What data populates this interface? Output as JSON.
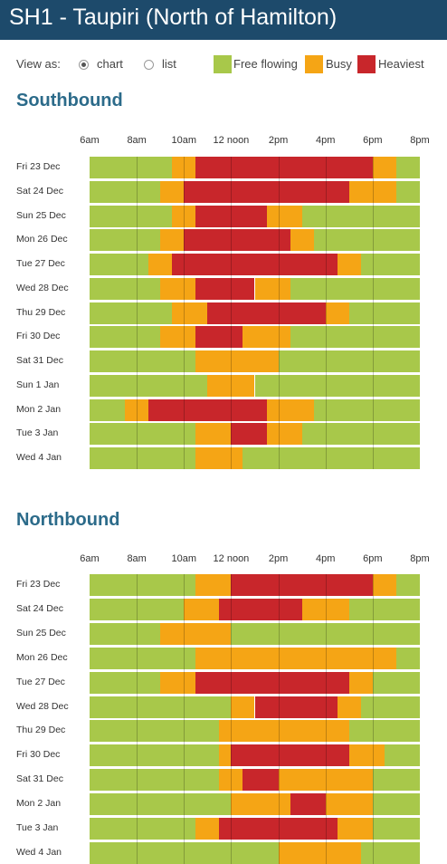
{
  "header": {
    "title": "SH1 - Taupiri (North of Hamilton)"
  },
  "view": {
    "label": "View as:",
    "options": [
      "chart",
      "list"
    ],
    "selected": "chart"
  },
  "legend": [
    {
      "label": "Free flowing",
      "color": "#a8c84a"
    },
    {
      "label": "Busy",
      "color": "#f5a515"
    },
    {
      "label": "Heaviest",
      "color": "#c8262b"
    }
  ],
  "axis_ticks": [
    "6am",
    "8am",
    "10am",
    "12 noon",
    "2pm",
    "4pm",
    "6pm",
    "8pm"
  ],
  "chart_data": [
    {
      "type": "heatmap",
      "title": "Southbound",
      "x_ticks": [
        "6am",
        "8am",
        "10am",
        "12 noon",
        "2pm",
        "4pm",
        "6pm",
        "8pm"
      ],
      "xlim": [
        6,
        20
      ],
      "levels": [
        "Free flowing",
        "Busy",
        "Heaviest"
      ],
      "rows": [
        {
          "day": "Fri 23 Dec",
          "segments": [
            [
              6,
              9.5,
              "Free flowing"
            ],
            [
              9.5,
              10.5,
              "Busy"
            ],
            [
              10.5,
              18,
              "Heaviest"
            ],
            [
              18,
              19,
              "Busy"
            ],
            [
              19,
              20,
              "Free flowing"
            ]
          ]
        },
        {
          "day": "Sat 24 Dec",
          "segments": [
            [
              6,
              9,
              "Free flowing"
            ],
            [
              9,
              10,
              "Busy"
            ],
            [
              10,
              17,
              "Heaviest"
            ],
            [
              17,
              19,
              "Busy"
            ],
            [
              19,
              20,
              "Free flowing"
            ]
          ]
        },
        {
          "day": "Sun 25 Dec",
          "segments": [
            [
              6,
              9.5,
              "Free flowing"
            ],
            [
              9.5,
              10.5,
              "Busy"
            ],
            [
              10.5,
              13.5,
              "Heaviest"
            ],
            [
              13.5,
              15,
              "Busy"
            ],
            [
              15,
              20,
              "Free flowing"
            ]
          ]
        },
        {
          "day": "Mon 26 Dec",
          "segments": [
            [
              6,
              9,
              "Free flowing"
            ],
            [
              9,
              10,
              "Busy"
            ],
            [
              10,
              14.5,
              "Heaviest"
            ],
            [
              14.5,
              15.5,
              "Busy"
            ],
            [
              15.5,
              20,
              "Free flowing"
            ]
          ]
        },
        {
          "day": "Tue 27 Dec",
          "segments": [
            [
              6,
              8.5,
              "Free flowing"
            ],
            [
              8.5,
              9.5,
              "Busy"
            ],
            [
              9.5,
              16.5,
              "Heaviest"
            ],
            [
              16.5,
              17.5,
              "Busy"
            ],
            [
              17.5,
              20,
              "Free flowing"
            ]
          ]
        },
        {
          "day": "Wed 28 Dec",
          "segments": [
            [
              6,
              9,
              "Free flowing"
            ],
            [
              9,
              10.5,
              "Busy"
            ],
            [
              10.5,
              13,
              "Heaviest"
            ],
            [
              13,
              14.5,
              "Busy"
            ],
            [
              14.5,
              20,
              "Free flowing"
            ]
          ]
        },
        {
          "day": "Thu 29 Dec",
          "segments": [
            [
              6,
              9.5,
              "Free flowing"
            ],
            [
              9.5,
              11,
              "Busy"
            ],
            [
              11,
              16,
              "Heaviest"
            ],
            [
              16,
              17,
              "Busy"
            ],
            [
              17,
              20,
              "Free flowing"
            ]
          ]
        },
        {
          "day": "Fri 30 Dec",
          "segments": [
            [
              6,
              9,
              "Free flowing"
            ],
            [
              9,
              10.5,
              "Busy"
            ],
            [
              10.5,
              12.5,
              "Heaviest"
            ],
            [
              12.5,
              14.5,
              "Busy"
            ],
            [
              14.5,
              20,
              "Free flowing"
            ]
          ]
        },
        {
          "day": "Sat 31 Dec",
          "segments": [
            [
              6,
              10.5,
              "Free flowing"
            ],
            [
              10.5,
              14,
              "Busy"
            ],
            [
              14,
              20,
              "Free flowing"
            ]
          ]
        },
        {
          "day": "Sun 1 Jan",
          "segments": [
            [
              6,
              11,
              "Free flowing"
            ],
            [
              11,
              13,
              "Busy"
            ],
            [
              13,
              20,
              "Free flowing"
            ]
          ]
        },
        {
          "day": "Mon 2 Jan",
          "segments": [
            [
              6,
              7.5,
              "Free flowing"
            ],
            [
              7.5,
              8.5,
              "Busy"
            ],
            [
              8.5,
              13.5,
              "Heaviest"
            ],
            [
              13.5,
              15.5,
              "Busy"
            ],
            [
              15.5,
              20,
              "Free flowing"
            ]
          ]
        },
        {
          "day": "Tue 3 Jan",
          "segments": [
            [
              6,
              10.5,
              "Free flowing"
            ],
            [
              10.5,
              12,
              "Busy"
            ],
            [
              12,
              13.5,
              "Heaviest"
            ],
            [
              13.5,
              15,
              "Busy"
            ],
            [
              15,
              20,
              "Free flowing"
            ]
          ]
        },
        {
          "day": "Wed 4 Jan",
          "segments": [
            [
              6,
              10.5,
              "Free flowing"
            ],
            [
              10.5,
              12.5,
              "Busy"
            ],
            [
              12.5,
              20,
              "Free flowing"
            ]
          ]
        }
      ]
    },
    {
      "type": "heatmap",
      "title": "Northbound",
      "x_ticks": [
        "6am",
        "8am",
        "10am",
        "12 noon",
        "2pm",
        "4pm",
        "6pm",
        "8pm"
      ],
      "xlim": [
        6,
        20
      ],
      "levels": [
        "Free flowing",
        "Busy",
        "Heaviest"
      ],
      "rows": [
        {
          "day": "Fri 23 Dec",
          "segments": [
            [
              6,
              10.5,
              "Free flowing"
            ],
            [
              10.5,
              12,
              "Busy"
            ],
            [
              12,
              18,
              "Heaviest"
            ],
            [
              18,
              19,
              "Busy"
            ],
            [
              19,
              20,
              "Free flowing"
            ]
          ]
        },
        {
          "day": "Sat 24 Dec",
          "segments": [
            [
              6,
              10,
              "Free flowing"
            ],
            [
              10,
              11.5,
              "Busy"
            ],
            [
              11.5,
              15,
              "Heaviest"
            ],
            [
              15,
              17,
              "Busy"
            ],
            [
              17,
              20,
              "Free flowing"
            ]
          ]
        },
        {
          "day": "Sun 25 Dec",
          "segments": [
            [
              6,
              9,
              "Free flowing"
            ],
            [
              9,
              12,
              "Busy"
            ],
            [
              12,
              20,
              "Free flowing"
            ]
          ]
        },
        {
          "day": "Mon 26 Dec",
          "segments": [
            [
              6,
              10.5,
              "Free flowing"
            ],
            [
              10.5,
              19,
              "Busy"
            ],
            [
              19,
              20,
              "Free flowing"
            ]
          ]
        },
        {
          "day": "Tue 27 Dec",
          "segments": [
            [
              6,
              9,
              "Free flowing"
            ],
            [
              9,
              10.5,
              "Busy"
            ],
            [
              10.5,
              17,
              "Heaviest"
            ],
            [
              17,
              18,
              "Busy"
            ],
            [
              18,
              20,
              "Free flowing"
            ]
          ]
        },
        {
          "day": "Wed 28 Dec",
          "segments": [
            [
              6,
              12,
              "Free flowing"
            ],
            [
              12,
              13,
              "Busy"
            ],
            [
              13,
              16.5,
              "Heaviest"
            ],
            [
              16.5,
              17.5,
              "Busy"
            ],
            [
              17.5,
              20,
              "Free flowing"
            ]
          ]
        },
        {
          "day": "Thu 29 Dec",
          "segments": [
            [
              6,
              11.5,
              "Free flowing"
            ],
            [
              11.5,
              17,
              "Busy"
            ],
            [
              17,
              20,
              "Free flowing"
            ]
          ]
        },
        {
          "day": "Fri 30 Dec",
          "segments": [
            [
              6,
              11.5,
              "Free flowing"
            ],
            [
              11.5,
              12,
              "Busy"
            ],
            [
              12,
              17,
              "Heaviest"
            ],
            [
              17,
              18.5,
              "Busy"
            ],
            [
              18.5,
              20,
              "Free flowing"
            ]
          ]
        },
        {
          "day": "Sat 31 Dec",
          "segments": [
            [
              6,
              11.5,
              "Free flowing"
            ],
            [
              11.5,
              12.5,
              "Busy"
            ],
            [
              12.5,
              14,
              "Heaviest"
            ],
            [
              14,
              18,
              "Busy"
            ],
            [
              18,
              20,
              "Free flowing"
            ]
          ]
        },
        {
          "day": "Mon 2 Jan",
          "segments": [
            [
              6,
              12,
              "Free flowing"
            ],
            [
              12,
              14.5,
              "Busy"
            ],
            [
              14.5,
              16,
              "Heaviest"
            ],
            [
              16,
              18,
              "Busy"
            ],
            [
              18,
              20,
              "Free flowing"
            ]
          ]
        },
        {
          "day": "Tue 3 Jan",
          "segments": [
            [
              6,
              10.5,
              "Free flowing"
            ],
            [
              10.5,
              11.5,
              "Busy"
            ],
            [
              11.5,
              16.5,
              "Heaviest"
            ],
            [
              16.5,
              18,
              "Busy"
            ],
            [
              18,
              20,
              "Free flowing"
            ]
          ]
        },
        {
          "day": "Wed 4 Jan",
          "segments": [
            [
              6,
              14,
              "Free flowing"
            ],
            [
              14,
              17.5,
              "Busy"
            ],
            [
              17.5,
              20,
              "Free flowing"
            ]
          ]
        }
      ]
    }
  ]
}
